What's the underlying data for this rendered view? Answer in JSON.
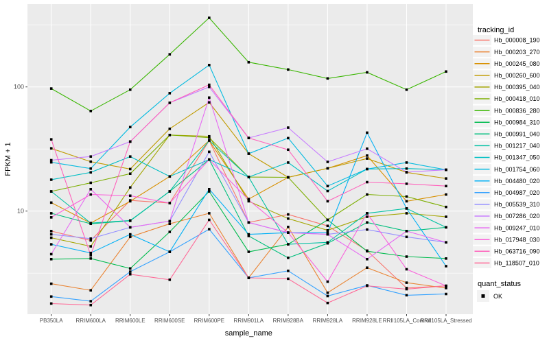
{
  "figure": {
    "bg": "#FFFFFF",
    "panel_bg": "#EBEBEB",
    "grid_color": "#FFFFFF",
    "tick_color": "#333333",
    "tick_label_color": "#4D4D4D",
    "axis_title_color": "#000000",
    "point_color": "#000000",
    "legend_key_bg": "#F2F2F2"
  },
  "chart_data": {
    "type": "line",
    "title": "",
    "xlabel": "sample_name",
    "ylabel": "FPKM + 1",
    "y_scale": "log10",
    "ylim": [
      1.45,
      460
    ],
    "y_ticks": [
      10,
      100
    ],
    "y_tick_labels": [
      "10",
      "100"
    ],
    "y_minor_gridlines": [
      3.162,
      31.62,
      316.2
    ],
    "grid": true,
    "point_marker": "square",
    "categories": [
      "PB350LA",
      "RRIM600LA",
      "RRIM600LE",
      "RRIM600SE",
      "RRIM600PE",
      "RRIM901LA",
      "RRIM928BA",
      "RRIM928LA",
      "RRIM928LE",
      "RRII105LA_Control",
      "RRII105LA_Stressed"
    ],
    "legend": {
      "title": "tracking_id",
      "position": "right"
    },
    "legend2": {
      "title": "quant_status",
      "items": [
        {
          "label": "OK",
          "marker": "square",
          "color": "#000000"
        }
      ]
    },
    "series": [
      {
        "name": "Hb_000008_190",
        "color": "#F8766D",
        "values": [
          6.9,
          5.8,
          12.2,
          11.6,
          37,
          8.1,
          9.4,
          7.6,
          4.8,
          2.4,
          2.5
        ]
      },
      {
        "name": "Hb_000203_270",
        "color": "#EA8331",
        "values": [
          2.6,
          2.3,
          6.2,
          7.9,
          9.6,
          2.9,
          7.45,
          2.2,
          3.5,
          2.65,
          2.4
        ]
      },
      {
        "name": "Hb_000245_080",
        "color": "#D89000",
        "values": [
          11.7,
          8.0,
          12.0,
          19.0,
          37,
          12.5,
          18.7,
          22.1,
          28.0,
          12.0,
          13.6
        ]
      },
      {
        "name": "Hb_000260_600",
        "color": "#C09B00",
        "values": [
          32,
          25,
          21.8,
          46,
          75,
          29,
          18.7,
          22.1,
          26.5,
          20.5,
          18.3
        ]
      },
      {
        "name": "Hb_000395_040",
        "color": "#A3A500",
        "values": [
          6.1,
          5.2,
          15.5,
          41,
          40,
          12.0,
          8.7,
          7.0,
          9.0,
          9.6,
          9.0
        ]
      },
      {
        "name": "Hb_000418_010",
        "color": "#7CAE00",
        "values": [
          14.4,
          16.9,
          20.0,
          41,
          39,
          18.8,
          18.7,
          8.5,
          13.6,
          13.1,
          10.8
        ]
      },
      {
        "name": "Hb_000836_280",
        "color": "#39B600",
        "values": [
          97,
          64,
          95,
          183,
          360,
          158,
          138,
          117,
          131,
          95,
          133
        ]
      },
      {
        "name": "Hb_000984_310",
        "color": "#00BB4E",
        "values": [
          4.1,
          4.15,
          3.45,
          6.8,
          14.4,
          4.7,
          5.4,
          8.5,
          4.75,
          4.3,
          4.15
        ]
      },
      {
        "name": "Hb_000991_040",
        "color": "#00BF7D",
        "values": [
          9.6,
          7.9,
          8.35,
          14.4,
          26,
          6.3,
          4.2,
          5.5,
          8.1,
          6.9,
          7.4
        ]
      },
      {
        "name": "Hb_001217_040",
        "color": "#00C1A3",
        "values": [
          14.4,
          8.0,
          8.4,
          14.4,
          37,
          18.8,
          5.4,
          5.6,
          9.6,
          10.5,
          7.4
        ]
      },
      {
        "name": "Hb_001347_050",
        "color": "#00BFC4",
        "values": [
          17.9,
          20.5,
          27.5,
          19,
          26,
          18.8,
          24.6,
          14.5,
          21.8,
          22,
          21.5
        ]
      },
      {
        "name": "Hb_001754_060",
        "color": "#00BAE0",
        "values": [
          24.7,
          22,
          47.5,
          89,
          150,
          29,
          38.7,
          15.9,
          21.8,
          24.6,
          21.5
        ]
      },
      {
        "name": "Hb_004480_020",
        "color": "#00B0F6",
        "values": [
          5.4,
          4.6,
          6.5,
          4.7,
          15,
          6.5,
          6.7,
          6.7,
          42.8,
          10.5,
          3.6
        ]
      },
      {
        "name": "Hb_004987_020",
        "color": "#35A2FF",
        "values": [
          2.05,
          1.88,
          3.25,
          4.7,
          7.15,
          2.9,
          3.3,
          2.07,
          2.52,
          2.1,
          2.15
        ]
      },
      {
        "name": "Hb_005539_310",
        "color": "#9590FF",
        "values": [
          6.5,
          6.0,
          7.4,
          8.3,
          30,
          8.1,
          6.7,
          6.5,
          7.1,
          6.2,
          5.6
        ]
      },
      {
        "name": "Hb_007286_020",
        "color": "#C77CFF",
        "values": [
          25.7,
          27.5,
          36.3,
          74.5,
          100,
          38.8,
          47,
          24.9,
          31.8,
          20.6,
          21.5
        ]
      },
      {
        "name": "Hb_009247_010",
        "color": "#E76BF3",
        "values": [
          4.5,
          15.0,
          7.4,
          8.3,
          82,
          8.1,
          6.7,
          6.5,
          4.1,
          6.9,
          5.6
        ]
      },
      {
        "name": "Hb_017948_030",
        "color": "#FA62DB",
        "values": [
          8.9,
          13.6,
          13.3,
          11.6,
          26,
          12.3,
          6.7,
          2.7,
          9.6,
          3.4,
          2.5
        ]
      },
      {
        "name": "Hb_063716_090",
        "color": "#FF62BC",
        "values": [
          37.8,
          4.4,
          36.3,
          74.5,
          104,
          38.8,
          31.2,
          12.0,
          17.1,
          16.6,
          15.9
        ]
      },
      {
        "name": "Hb_118507_010",
        "color": "#FF6A98",
        "values": [
          1.8,
          1.75,
          3.1,
          2.8,
          8.5,
          2.9,
          2.85,
          1.82,
          2.5,
          2.35,
          2.5
        ]
      }
    ]
  }
}
